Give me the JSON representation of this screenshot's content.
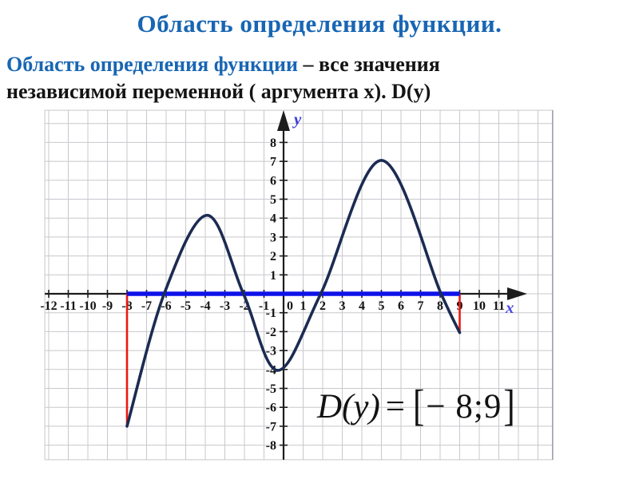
{
  "title": "Область определения функции.",
  "definition": {
    "term": "Область определения функции",
    "rest_line1": " – все значения",
    "rest_line2": "независимой переменной ( аргумента x). D(y)"
  },
  "formula": {
    "lhs": "D(y)",
    "equals": "=",
    "open_bracket": "[",
    "interval": "− 8;9",
    "close_bracket": "]"
  },
  "chart_data": {
    "type": "line",
    "title": "",
    "xlabel": "x",
    "ylabel": "y",
    "grid": true,
    "x_range": [
      -12.2,
      13.75
    ],
    "y_range": [
      -8.77,
      9.7
    ],
    "x_axis_ticks": [
      -12,
      -11,
      -10,
      -9,
      -8,
      -7,
      -6,
      -5,
      -4,
      -3,
      -2,
      -1,
      0,
      1,
      2,
      3,
      4,
      5,
      6,
      7,
      8,
      9,
      10,
      11
    ],
    "y_axis_ticks": [
      -8,
      -7,
      -6,
      -5,
      -4,
      -3,
      -2,
      -1,
      1,
      2,
      3,
      4,
      5,
      6,
      7,
      8
    ],
    "curve_points": [
      [
        -8,
        -7
      ],
      [
        -6.1,
        0
      ],
      [
        -3.9,
        4.15
      ],
      [
        -2.05,
        0
      ],
      [
        -0.3,
        -4.05
      ],
      [
        1.9,
        0
      ],
      [
        5,
        7.05
      ],
      [
        8.05,
        0
      ],
      [
        9,
        -2.05
      ]
    ],
    "domain_segment": {
      "from": -8,
      "to": 9
    },
    "boundary_lines": [
      {
        "x": -8,
        "y_from": 0,
        "y_to": -7
      },
      {
        "x": 9,
        "y_from": 0,
        "y_to": -2.05
      }
    ],
    "colors": {
      "curve": "#1c2b52",
      "domain": "#0e12e8",
      "boundary": "#ea1a12",
      "grid": "#c8c8ce",
      "grid_edge": "#9193a0",
      "axis": "#1c1c1c",
      "tick_text": "#141414",
      "x_label": "#4a49e6",
      "y_label": "#3c3cd9"
    }
  }
}
